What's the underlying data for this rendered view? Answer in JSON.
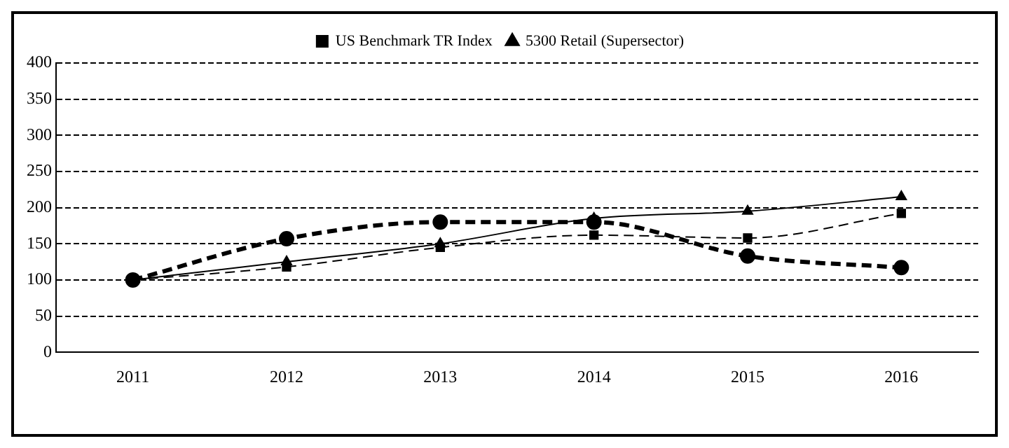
{
  "chart_data": {
    "type": "line",
    "categories": [
      "2011",
      "2012",
      "2013",
      "2014",
      "2015",
      "2016"
    ],
    "series": [
      {
        "color": "#000000",
        "values": [
          100,
          157,
          180,
          180,
          133,
          117
        ],
        "marker": "circle",
        "line_style": "dashed"
      },
      {
        "name": "US Benchmark TR Index",
        "color": "#000000",
        "values": [
          100,
          118,
          145,
          162,
          158,
          192
        ],
        "marker": "square",
        "line_style": "dashed"
      },
      {
        "name": "5300 Retail (Supersector)",
        "color": "#000000",
        "values": [
          100,
          125,
          150,
          185,
          195,
          215
        ],
        "marker": "triangle",
        "line_style": "solid"
      }
    ],
    "ylim": [
      0,
      400
    ],
    "yticks": [
      0,
      50,
      100,
      150,
      200,
      250,
      300,
      350,
      400
    ],
    "grid": "y",
    "legend": "top"
  }
}
